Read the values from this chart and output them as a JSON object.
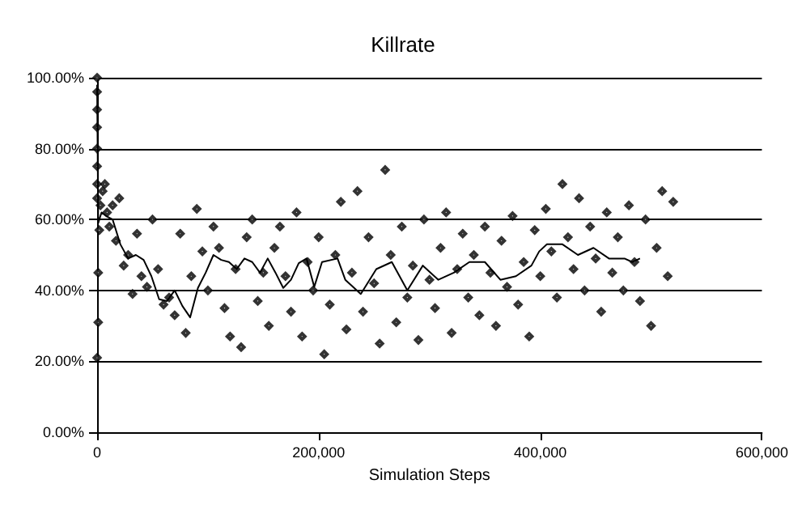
{
  "chart_data": {
    "type": "scatter",
    "title": "Killrate",
    "xlabel": "Simulation Steps",
    "xlim": [
      0,
      600000
    ],
    "xticks": [
      0,
      {
        "value": 200000,
        "label": "200,000"
      },
      {
        "value": 400000,
        "label": "400,000"
      },
      {
        "value": 600000,
        "label": "600,000"
      }
    ],
    "ylim": [
      0,
      100
    ],
    "yticks": [
      {
        "value": 0,
        "label": "0.00%"
      },
      {
        "value": 20,
        "label": "20.00%"
      },
      {
        "value": 40,
        "label": "40.00%"
      },
      {
        "value": 60,
        "label": "60.00%"
      },
      {
        "value": 80,
        "label": "80.00%"
      },
      {
        "value": 100,
        "label": "100.00%"
      }
    ],
    "grid": "y",
    "series": [
      {
        "color": "#000000",
        "marker": "diamond",
        "x": [
          0,
          0,
          0,
          0,
          0,
          0,
          0,
          0,
          0,
          1000,
          1000,
          2000,
          3000,
          5000,
          7000,
          9000,
          11000,
          14000,
          17000,
          20000,
          24000,
          28000,
          32000,
          36000,
          40000,
          45000,
          50000,
          55000,
          60000,
          65000,
          70000,
          75000,
          80000,
          85000,
          90000,
          95000,
          100000,
          105000,
          110000,
          115000,
          120000,
          125000,
          130000,
          135000,
          140000,
          145000,
          150000,
          155000,
          160000,
          165000,
          170000,
          175000,
          180000,
          185000,
          190000,
          195000,
          200000,
          205000,
          210000,
          215000,
          220000,
          225000,
          230000,
          235000,
          240000,
          245000,
          250000,
          255000,
          260000,
          265000,
          270000,
          275000,
          280000,
          285000,
          290000,
          295000,
          300000,
          305000,
          310000,
          315000,
          320000,
          325000,
          330000,
          335000,
          340000,
          345000,
          350000,
          355000,
          360000,
          365000,
          370000,
          375000,
          380000,
          385000,
          390000,
          395000,
          400000,
          405000,
          410000,
          415000,
          420000,
          425000,
          430000,
          435000,
          440000,
          445000,
          450000,
          455000,
          460000,
          465000,
          470000,
          475000,
          480000,
          485000,
          490000,
          495000,
          500000,
          505000,
          510000,
          515000,
          520000
        ],
        "values": [
          100,
          96,
          91,
          86,
          80,
          75,
          70,
          66,
          21,
          31,
          45,
          57,
          64,
          68,
          70,
          62,
          58,
          64,
          54,
          66,
          47,
          50,
          39,
          56,
          44,
          41,
          60,
          46,
          36,
          38,
          33,
          56,
          28,
          44,
          63,
          51,
          40,
          58,
          52,
          35,
          27,
          46,
          24,
          55,
          60,
          37,
          45,
          30,
          52,
          58,
          44,
          34,
          62,
          27,
          48,
          40,
          55,
          22,
          36,
          50,
          65,
          29,
          45,
          68,
          34,
          55,
          42,
          25,
          74,
          50,
          31,
          58,
          38,
          47,
          26,
          60,
          43,
          35,
          52,
          62,
          28,
          46,
          56,
          38,
          50,
          33,
          58,
          45,
          30,
          54,
          41,
          61,
          36,
          48,
          27,
          57,
          44,
          63,
          51,
          38,
          70,
          55,
          46,
          66,
          40,
          58,
          49,
          34,
          62,
          45,
          55,
          40,
          64,
          48,
          37,
          60,
          30,
          52,
          68,
          44,
          65
        ]
      },
      {
        "type": "line",
        "color": "#000000",
        "marker": "none",
        "x": [
          0,
          1000,
          4000,
          8000,
          14000,
          21000,
          28000,
          35000,
          42000,
          49000,
          56000,
          63000,
          70000,
          77000,
          84000,
          91000,
          98000,
          105000,
          112000,
          119000,
          126000,
          133000,
          140000,
          147000,
          154000,
          161000,
          168000,
          175000,
          182000,
          189000,
          196000,
          203000,
          217000,
          224000,
          238000,
          252000,
          266000,
          280000,
          294000,
          308000,
          322000,
          336000,
          350000,
          364000,
          378000,
          392000,
          399000,
          406000,
          420000,
          434000,
          448000,
          462000,
          476000,
          483000,
          490000
        ],
        "values": [
          98,
          59,
          62,
          61,
          60,
          53,
          49,
          50,
          48.6,
          44,
          37.5,
          37,
          40,
          35.6,
          32.4,
          40.7,
          45,
          50,
          48.6,
          48,
          46,
          49,
          48,
          45,
          49,
          45,
          40.7,
          43,
          47.7,
          49,
          41,
          48,
          49,
          43,
          39,
          46,
          48,
          40,
          47,
          43,
          45,
          48,
          48,
          43,
          44,
          47,
          51,
          53,
          53,
          50,
          52,
          49,
          49,
          48,
          49
        ]
      }
    ]
  }
}
